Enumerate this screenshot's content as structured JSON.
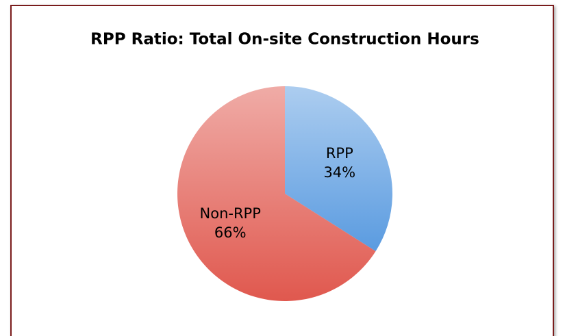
{
  "chart_data": {
    "type": "pie",
    "title": "RPP Ratio: Total On-site Construction Hours",
    "categories": [
      "RPP",
      "Non-RPP"
    ],
    "values": [
      34,
      66
    ],
    "value_labels": [
      "34%",
      "66%"
    ],
    "colors": [
      "#5a9be0",
      "#e0584e"
    ]
  }
}
